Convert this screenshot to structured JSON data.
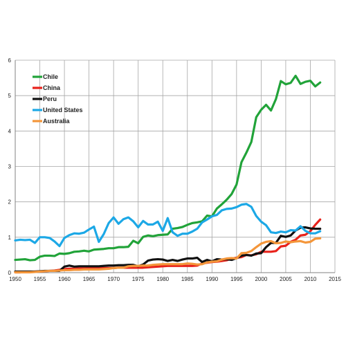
{
  "chart_data": {
    "type": "line",
    "title": "",
    "xlabel": "",
    "ylabel": "",
    "xlim": [
      1950,
      2015
    ],
    "ylim": [
      0,
      6
    ],
    "x_ticks": [
      1950,
      1955,
      1960,
      1965,
      1970,
      1975,
      1980,
      1985,
      1990,
      1995,
      2000,
      2005,
      2010,
      2015
    ],
    "y_ticks": [
      0,
      1,
      2,
      3,
      4,
      5,
      6
    ],
    "grid": true,
    "legend_position": "top-left",
    "x": [
      1950,
      1951,
      1952,
      1953,
      1954,
      1955,
      1956,
      1957,
      1958,
      1959,
      1960,
      1961,
      1962,
      1963,
      1964,
      1965,
      1966,
      1967,
      1968,
      1969,
      1970,
      1971,
      1972,
      1973,
      1974,
      1975,
      1976,
      1977,
      1978,
      1979,
      1980,
      1981,
      1982,
      1983,
      1984,
      1985,
      1986,
      1987,
      1988,
      1989,
      1990,
      1991,
      1992,
      1993,
      1994,
      1995,
      1996,
      1997,
      1998,
      1999,
      2000,
      2001,
      2002,
      2003,
      2004,
      2005,
      2006,
      2007,
      2008,
      2009,
      2010,
      2011,
      2012
    ],
    "series": [
      {
        "name": "Chile",
        "color": "#21a339",
        "values": [
          0.36,
          0.37,
          0.38,
          0.35,
          0.36,
          0.45,
          0.48,
          0.48,
          0.47,
          0.54,
          0.53,
          0.55,
          0.59,
          0.6,
          0.62,
          0.6,
          0.65,
          0.66,
          0.67,
          0.69,
          0.69,
          0.72,
          0.72,
          0.73,
          0.9,
          0.83,
          1.01,
          1.05,
          1.03,
          1.06,
          1.07,
          1.08,
          1.24,
          1.26,
          1.29,
          1.35,
          1.4,
          1.42,
          1.45,
          1.61,
          1.59,
          1.81,
          1.93,
          2.06,
          2.22,
          2.49,
          3.12,
          3.39,
          3.69,
          4.39,
          4.6,
          4.74,
          4.58,
          4.9,
          5.41,
          5.32,
          5.36,
          5.56,
          5.33,
          5.39,
          5.42,
          5.26,
          5.37
        ]
      },
      {
        "name": "China",
        "color": "#e8221b",
        "values": [
          0.01,
          0.01,
          0.02,
          0.02,
          0.03,
          0.03,
          0.04,
          0.05,
          0.06,
          0.08,
          0.1,
          0.11,
          0.11,
          0.12,
          0.12,
          0.13,
          0.13,
          0.13,
          0.13,
          0.13,
          0.13,
          0.14,
          0.14,
          0.14,
          0.14,
          0.14,
          0.14,
          0.15,
          0.16,
          0.17,
          0.18,
          0.19,
          0.19,
          0.19,
          0.19,
          0.19,
          0.19,
          0.2,
          0.26,
          0.28,
          0.3,
          0.31,
          0.33,
          0.35,
          0.4,
          0.42,
          0.44,
          0.5,
          0.49,
          0.52,
          0.59,
          0.59,
          0.59,
          0.61,
          0.74,
          0.76,
          0.87,
          0.93,
          1.05,
          1.07,
          1.17,
          1.35,
          1.5
        ]
      },
      {
        "name": "Peru",
        "color": "#111111",
        "values": [
          0.03,
          0.03,
          0.03,
          0.03,
          0.03,
          0.04,
          0.05,
          0.05,
          0.05,
          0.05,
          0.17,
          0.2,
          0.17,
          0.18,
          0.18,
          0.18,
          0.18,
          0.18,
          0.19,
          0.2,
          0.2,
          0.21,
          0.21,
          0.22,
          0.22,
          0.18,
          0.23,
          0.34,
          0.37,
          0.38,
          0.37,
          0.33,
          0.36,
          0.33,
          0.37,
          0.4,
          0.4,
          0.42,
          0.3,
          0.36,
          0.32,
          0.38,
          0.37,
          0.38,
          0.36,
          0.41,
          0.48,
          0.5,
          0.48,
          0.54,
          0.55,
          0.72,
          0.84,
          0.84,
          1.04,
          1.01,
          1.05,
          1.19,
          1.27,
          1.28,
          1.25,
          1.24,
          1.24
        ]
      },
      {
        "name": "United States",
        "color": "#1ca8e6",
        "values": [
          0.91,
          0.93,
          0.92,
          0.93,
          0.84,
          1.0,
          1.0,
          0.98,
          0.88,
          0.75,
          0.98,
          1.06,
          1.11,
          1.1,
          1.13,
          1.22,
          1.3,
          0.87,
          1.09,
          1.4,
          1.56,
          1.38,
          1.51,
          1.56,
          1.45,
          1.28,
          1.46,
          1.36,
          1.36,
          1.44,
          1.18,
          1.54,
          1.14,
          1.04,
          1.1,
          1.1,
          1.16,
          1.24,
          1.42,
          1.5,
          1.59,
          1.63,
          1.76,
          1.8,
          1.81,
          1.85,
          1.92,
          1.94,
          1.86,
          1.6,
          1.44,
          1.34,
          1.14,
          1.12,
          1.16,
          1.14,
          1.2,
          1.19,
          1.31,
          1.18,
          1.11,
          1.11,
          1.17
        ]
      },
      {
        "name": "Australia",
        "color": "#f4963a",
        "values": [
          0.01,
          0.01,
          0.01,
          0.01,
          0.02,
          0.03,
          0.04,
          0.05,
          0.05,
          0.06,
          0.07,
          0.07,
          0.08,
          0.08,
          0.09,
          0.09,
          0.09,
          0.09,
          0.1,
          0.11,
          0.13,
          0.14,
          0.14,
          0.18,
          0.19,
          0.19,
          0.2,
          0.2,
          0.22,
          0.23,
          0.24,
          0.24,
          0.24,
          0.24,
          0.24,
          0.26,
          0.25,
          0.23,
          0.24,
          0.29,
          0.31,
          0.32,
          0.37,
          0.4,
          0.41,
          0.4,
          0.55,
          0.56,
          0.61,
          0.72,
          0.82,
          0.87,
          0.89,
          0.83,
          0.84,
          0.88,
          0.86,
          0.88,
          0.89,
          0.85,
          0.87,
          0.96,
          0.97
        ]
      }
    ]
  }
}
